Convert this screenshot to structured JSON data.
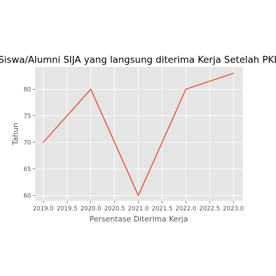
{
  "chart_data": {
    "type": "line",
    "title": "Siswa/Alumni SIJA yang langsung diterima Kerja Setelah PKL",
    "xlabel": "Persentase Diterima Kerja",
    "ylabel": "Tahun",
    "x": [
      2019,
      2020,
      2021,
      2022,
      2023
    ],
    "series": [
      {
        "values": [
          70,
          80,
          60,
          80,
          83
        ]
      }
    ],
    "xlim": [
      2018.83,
      2023.2
    ],
    "ylim": [
      59,
      84.2
    ],
    "xticks": [
      2019.0,
      2019.5,
      2020.0,
      2020.5,
      2021.0,
      2021.5,
      2022.0,
      2022.5,
      2023.0
    ],
    "xtick_labels": [
      "2019.0",
      "2019.5",
      "2020.0",
      "2020.5",
      "2021.0",
      "2021.5",
      "2022.0",
      "2022.5",
      "2023.0"
    ],
    "yticks": [
      60,
      65,
      70,
      75,
      80
    ],
    "ytick_labels": [
      "60",
      "65",
      "70",
      "75",
      "80"
    ],
    "grid": true,
    "colors": {
      "line": "#E24A33",
      "plot_background": "#E5E5E5",
      "grid": "#FFFFFF",
      "tick_text": "#555555",
      "label_text": "#555555",
      "title_text": "#000000"
    }
  }
}
